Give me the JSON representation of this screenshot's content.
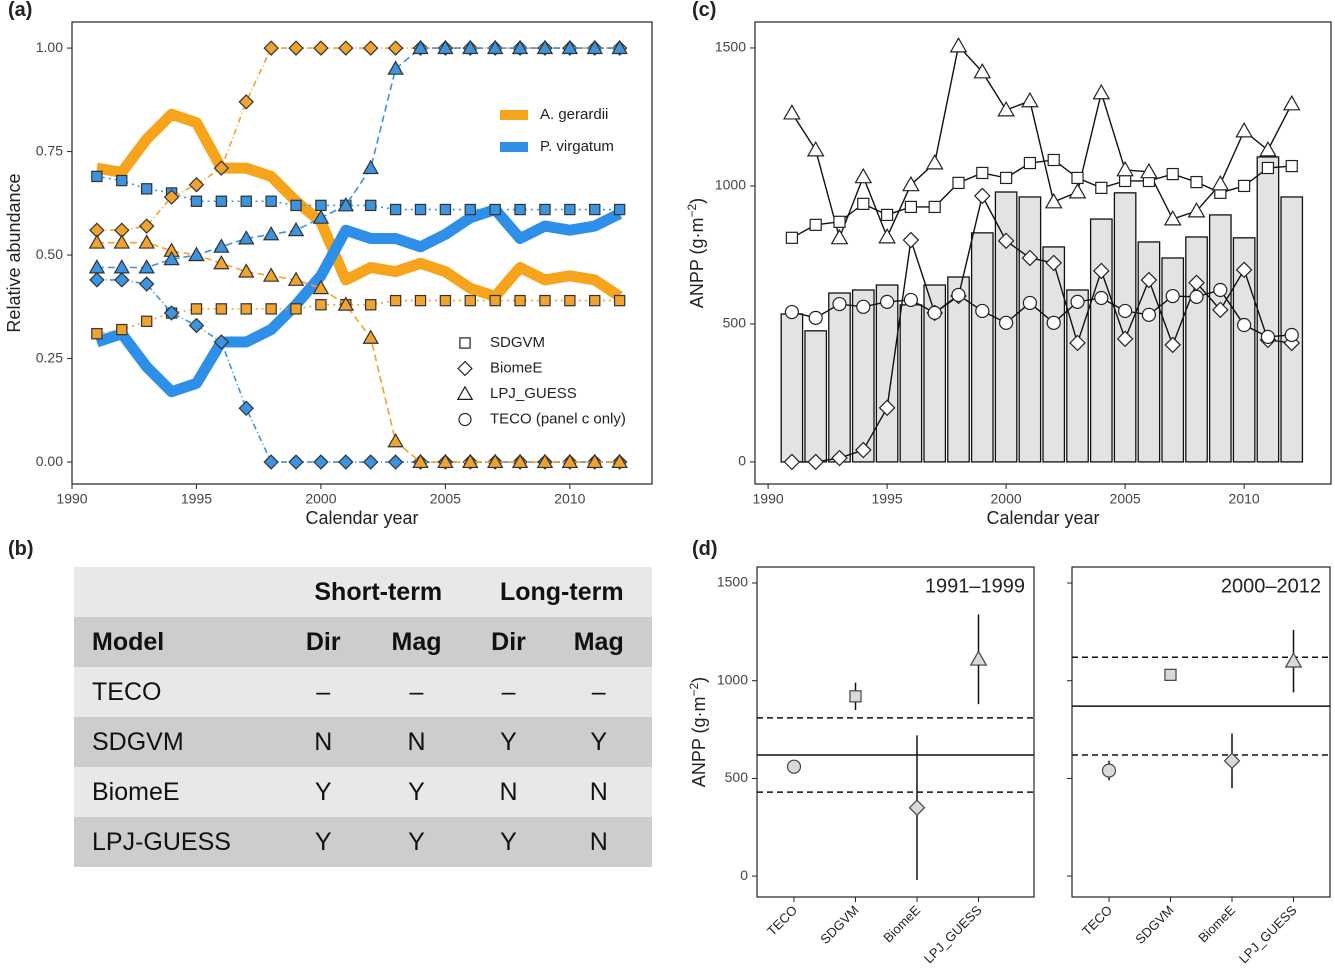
{
  "panel_labels": [
    "(a)",
    "(b)",
    "(c)",
    "(d)"
  ],
  "chart_data": [
    {
      "type": "line",
      "xlabel": "Calendar year",
      "ylabel": [
        "Relative abundance"
      ],
      "x": [
        1991,
        1992,
        1993,
        1994,
        1995,
        1996,
        1997,
        1998,
        1999,
        2000,
        2001,
        2002,
        2003,
        2004,
        2005,
        2006,
        2007,
        2008,
        2009,
        2010,
        2011,
        2012
      ],
      "xlim": [
        1990,
        2013.3
      ],
      "xticks": [
        1990,
        1995,
        2000,
        2005,
        2010
      ],
      "ylim": [
        -0.053,
        1.063
      ],
      "yticks": [
        {
          "value": 0,
          "label": "0.00"
        },
        {
          "value": 0.25,
          "label": "0.25"
        },
        {
          "value": 0.5,
          "label": "0.50"
        },
        {
          "value": 0.75,
          "label": "0.75"
        },
        {
          "value": 1,
          "label": "1.00"
        }
      ],
      "series": [
        {
          "name": "A. gerardii",
          "color": "#f5a41c",
          "values": [
            0.71,
            0.7,
            0.78,
            0.84,
            0.82,
            0.71,
            0.71,
            0.69,
            0.63,
            0.58,
            0.44,
            0.47,
            0.46,
            0.48,
            0.46,
            0.42,
            0.4,
            0.47,
            0.44,
            0.45,
            0.44,
            0.4
          ]
        },
        {
          "name": "P. virgatum",
          "color": "#2d8fe8",
          "values": [
            0.29,
            0.31,
            0.23,
            0.17,
            0.19,
            0.29,
            0.29,
            0.32,
            0.38,
            0.45,
            0.56,
            0.54,
            0.54,
            0.52,
            0.55,
            0.59,
            0.61,
            0.54,
            0.57,
            0.56,
            0.57,
            0.6
          ]
        },
        {
          "marker": "square",
          "line": "2 4",
          "color": "#f0a32e",
          "values": [
            0.31,
            0.32,
            0.34,
            0.36,
            0.37,
            0.37,
            0.37,
            0.37,
            0.37,
            0.38,
            0.38,
            0.38,
            0.39,
            0.39,
            0.39,
            0.39,
            0.39,
            0.39,
            0.39,
            0.39,
            0.39,
            0.39
          ]
        },
        {
          "marker": "square",
          "line": "2 4",
          "color": "#3a94e0",
          "values": [
            0.69,
            0.68,
            0.66,
            0.65,
            0.63,
            0.63,
            0.63,
            0.63,
            0.62,
            0.62,
            0.62,
            0.62,
            0.61,
            0.61,
            0.61,
            0.61,
            0.61,
            0.61,
            0.61,
            0.61,
            0.61,
            0.61
          ]
        },
        {
          "marker": "diamond",
          "line": "6 3 1 3",
          "color": "#f0a32e",
          "values": [
            0.56,
            0.56,
            0.57,
            0.64,
            0.67,
            0.71,
            0.87,
            1,
            1,
            1,
            1,
            1,
            1,
            1,
            1,
            1,
            1,
            1,
            1,
            1,
            1,
            1
          ]
        },
        {
          "marker": "diamond",
          "line": "6 3 1 3",
          "color": "#3a94e0",
          "values": [
            0.44,
            0.44,
            0.43,
            0.36,
            0.33,
            0.29,
            0.13,
            0,
            0,
            0,
            0,
            0,
            0,
            0,
            0,
            0,
            0,
            0,
            0,
            0,
            0,
            0
          ]
        },
        {
          "marker": "triangle",
          "line": "7 4",
          "color": "#f0a32e",
          "values": [
            0.53,
            0.53,
            0.53,
            0.51,
            0.5,
            0.48,
            0.46,
            0.45,
            0.44,
            0.42,
            0.38,
            0.3,
            0.05,
            0,
            0,
            0,
            0,
            0,
            0,
            0,
            0,
            0
          ]
        },
        {
          "marker": "triangle",
          "line": "7 4",
          "color": "#3a94e0",
          "values": [
            0.47,
            0.47,
            0.47,
            0.49,
            0.5,
            0.52,
            0.54,
            0.55,
            0.56,
            0.59,
            0.62,
            0.71,
            0.95,
            1,
            1,
            1,
            1,
            1,
            1,
            1,
            1,
            1
          ]
        }
      ],
      "marker_legend": [
        {
          "label": "SDGVM",
          "marker": "square"
        },
        {
          "label": "BiomeE",
          "marker": "diamond"
        },
        {
          "label": "LPJ_GUESS",
          "marker": "triangle"
        },
        {
          "label": "TECO (panel c only)",
          "marker": "circle"
        }
      ]
    },
    {
      "type": "bar_line",
      "xlabel": "Calendar year",
      "ylabel": [
        "ANPP (g·m",
        "−2",
        ")"
      ],
      "x": [
        1991,
        1992,
        1993,
        1994,
        1995,
        1996,
        1997,
        1998,
        1999,
        2000,
        2001,
        2002,
        2003,
        2004,
        2005,
        2006,
        2007,
        2008,
        2009,
        2010,
        2011,
        2012
      ],
      "xlim": [
        1989.45,
        2013.65
      ],
      "xticks": [
        1990,
        1995,
        2000,
        2005,
        2010
      ],
      "ylim": [
        -80,
        1594
      ],
      "yticks": [
        0,
        500,
        1000,
        1500
      ],
      "bars": {
        "color": "#e3e3e3",
        "values": [
          536,
          475,
          612,
          623,
          641,
          569,
          641,
          670,
          830,
          978,
          960,
          779,
          623,
          880,
          975,
          797,
          739,
          815,
          895,
          812,
          1105,
          960
        ]
      },
      "series": [
        {
          "marker": "square",
          "values": [
            812,
            859,
            870,
            935,
            895,
            924,
            924,
            1011,
            1047,
            1029,
            1083,
            1094,
            1029,
            993,
            1018,
            1018,
            1043,
            1014,
            975,
            1000,
            1065,
            1072
          ]
        },
        {
          "marker": "diamond",
          "values": [
            0,
            0,
            14,
            43,
            196,
            804,
            540,
            601,
            964,
            801,
            739,
            721,
            431,
            692,
            446,
            659,
            424,
            649,
            551,
            696,
            442,
            431
          ]
        },
        {
          "marker": "triangle",
          "values": [
            1264,
            1130,
            812,
            1033,
            815,
            1004,
            1083,
            1507,
            1413,
            1275,
            1308,
            942,
            978,
            1337,
            1058,
            1051,
            880,
            909,
            1007,
            1199,
            1130,
            1297
          ]
        },
        {
          "marker": "circle",
          "values": [
            543,
            522,
            572,
            562,
            580,
            587,
            540,
            605,
            547,
            504,
            576,
            504,
            580,
            594,
            547,
            533,
            601,
            598,
            623,
            496,
            453,
            460
          ]
        }
      ]
    },
    {
      "type": "point_range",
      "title": "1991–1999",
      "ylabel": [
        "ANPP (g·m",
        "−2",
        ")"
      ],
      "ytick_labels": true,
      "categories": [
        "TECO",
        "SDGVM",
        "BiomeE",
        "LPJ_GUESS"
      ],
      "markers": [
        "circle",
        "square",
        "diamond",
        "triangle"
      ],
      "values": [
        560,
        920,
        350,
        1110
      ],
      "errors": [
        20,
        70,
        370,
        230
      ],
      "hline": 620,
      "dashed": [
        430,
        810
      ],
      "color": "#d9d9d9",
      "ylim": [
        -107,
        1582
      ],
      "yticks": [
        0,
        500,
        1000,
        1500
      ]
    },
    {
      "type": "point_range",
      "title": "2000–2012",
      "ytick_labels": false,
      "categories": [
        "TECO",
        "SDGVM",
        "BiomeE",
        "LPJ_GUESS"
      ],
      "markers": [
        "circle",
        "square",
        "diamond",
        "triangle"
      ],
      "values": [
        540,
        1030,
        590,
        1100
      ],
      "errors": [
        50,
        25,
        140,
        160
      ],
      "hline": 870,
      "dashed": [
        620,
        1120
      ],
      "color": "#d9d9d9",
      "ylim": [
        -107,
        1582
      ],
      "yticks": [
        0,
        500,
        1000,
        1500
      ]
    }
  ],
  "table": {
    "header": [
      "Short-term",
      "Long-term"
    ],
    "columns": [
      "Model",
      "Dir",
      "Mag",
      "Dir",
      "Mag"
    ],
    "rows": [
      [
        "TECO",
        "–",
        "–",
        "–",
        "–"
      ],
      [
        "SDGVM",
        "N",
        "N",
        "Y",
        "Y"
      ],
      [
        "BiomeE",
        "Y",
        "Y",
        "N",
        "N"
      ],
      [
        "LPJ-GUESS",
        "Y",
        "Y",
        "Y",
        "N"
      ]
    ]
  }
}
